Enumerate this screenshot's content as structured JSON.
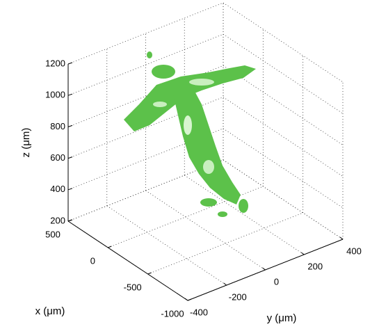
{
  "chart_data": {
    "type": "isosurface3d",
    "xlabel": "x (μm)",
    "ylabel": "y (μm)",
    "zlabel": "z (μm)",
    "xlim": [
      -1000,
      500
    ],
    "xticks": [
      500,
      0,
      -500,
      -1000
    ],
    "ylim": [
      -400,
      400
    ],
    "yticks": [
      -400,
      -200,
      0,
      200,
      400
    ],
    "zlim": [
      200,
      1200
    ],
    "zticks": [
      200,
      400,
      600,
      800,
      1000,
      1200
    ],
    "grid": true,
    "color": "#5cc14a"
  }
}
